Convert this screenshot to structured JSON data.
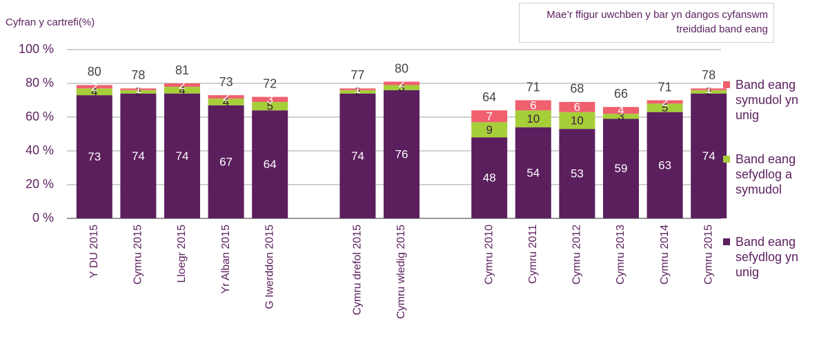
{
  "chart_data": {
    "type": "stacked_bar",
    "y_label": "Cyfran y cartrefi(%)",
    "annotation": "Mae’r ffigur uwchben y bar yn dangos cyfanswm treiddiad band eang",
    "categories": [
      "Y DU 2015",
      "Cymru 2015",
      "Lloegr 2015",
      "Yr Alban 2015",
      "G Iwerddon 2015",
      null,
      "Cymru drefol 2015",
      "Cymru wledig 2015",
      null,
      "Cymru 2010",
      "Cymru 2011",
      "Cymru 2012",
      "Cymru 2013",
      "Cymru 2014",
      "Cymru 2015"
    ],
    "series": [
      {
        "name": "Band eang sefydlog yn unig",
        "color": "#5b1f5e",
        "values": [
          73,
          74,
          74,
          67,
          64,
          null,
          74,
          76,
          null,
          48,
          54,
          53,
          59,
          63,
          74
        ]
      },
      {
        "name": "Band eang sefydlog a symudol",
        "color": "#a6ce39",
        "values": [
          4,
          2,
          4,
          4,
          5,
          null,
          2,
          3,
          null,
          9,
          10,
          10,
          3,
          5,
          2
        ]
      },
      {
        "name": "Band eang symudol yn unig",
        "color": "#f0606f",
        "values": [
          2,
          1,
          2,
          2,
          3,
          null,
          1,
          2,
          null,
          7,
          6,
          6,
          4,
          2,
          1
        ]
      }
    ],
    "totals": [
      80,
      78,
      81,
      73,
      72,
      null,
      77,
      80,
      null,
      64,
      71,
      68,
      66,
      71,
      78
    ],
    "ylim": [
      0,
      100
    ],
    "yticks": [
      {
        "value": 0,
        "label": "0 %"
      },
      {
        "value": 20,
        "label": "20 %"
      },
      {
        "value": 40,
        "label": "40 %"
      },
      {
        "value": 60,
        "label": "60 %"
      },
      {
        "value": 80,
        "label": "80 %"
      },
      {
        "value": 100,
        "label": "100 %"
      }
    ],
    "grid": true,
    "legend": "right"
  }
}
